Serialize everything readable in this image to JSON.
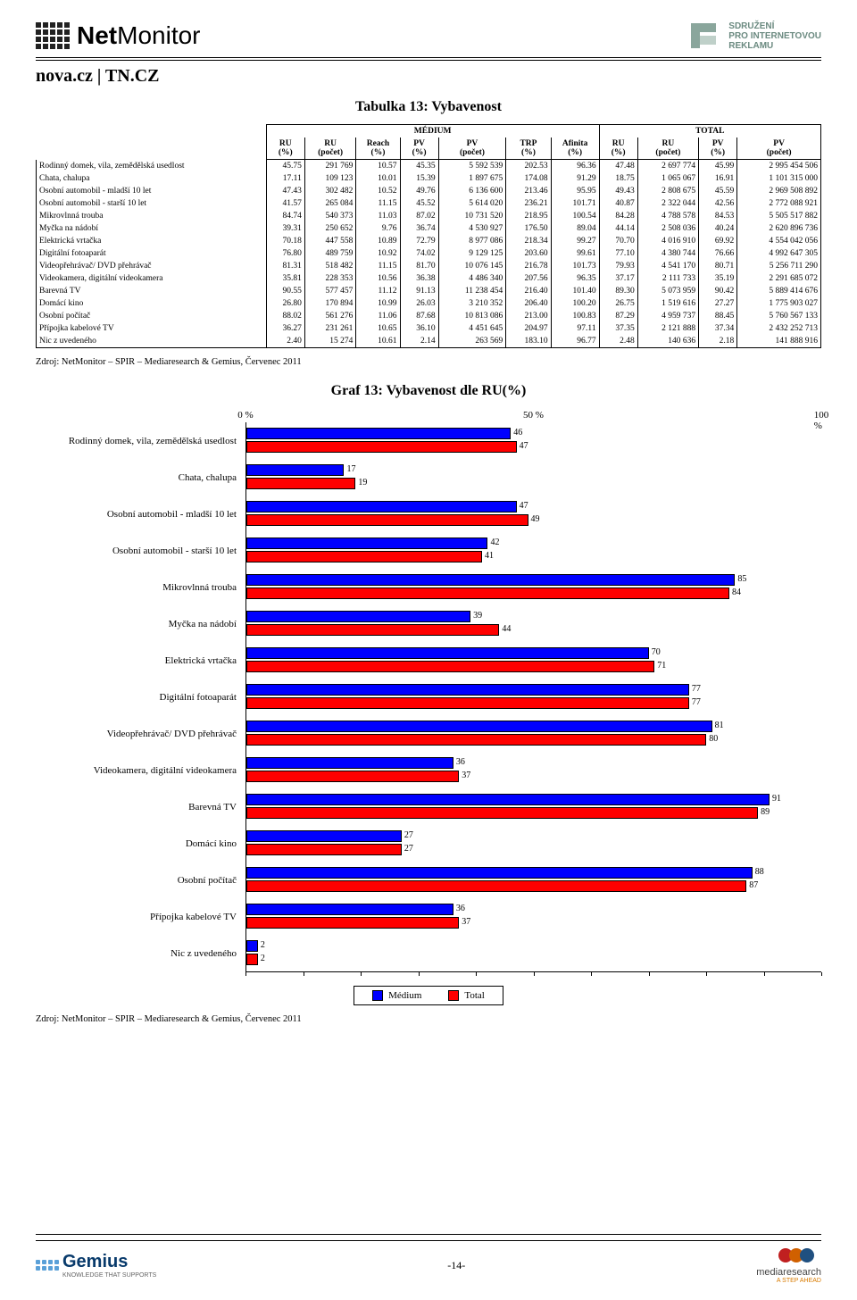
{
  "header": {
    "logo_name": "NetMonitor",
    "spir_line1": "SDRUŽENÍ",
    "spir_line2": "PRO INTERNETOVOU",
    "spir_line3": "REKLAMU"
  },
  "site_title": "nova.cz | TN.CZ",
  "table_title": "Tabulka 13: Vybavenost",
  "group_headers": {
    "medium": "MÉDIUM",
    "total": "TOTAL"
  },
  "columns": [
    "RU (%)",
    "RU (počet)",
    "Reach (%)",
    "PV (%)",
    "PV (počet)",
    "TRP (%)",
    "Afinita (%)",
    "RU (%)",
    "RU (počet)",
    "PV (%)",
    "PV (počet)"
  ],
  "rows": [
    {
      "label": "Rodinný domek, vila, zemědělská usedlost",
      "v": [
        "45.75",
        "291 769",
        "10.57",
        "45.35",
        "5 592 539",
        "202.53",
        "96.36",
        "47.48",
        "2 697 774",
        "45.99",
        "2 995 454 506"
      ]
    },
    {
      "label": "Chata, chalupa",
      "v": [
        "17.11",
        "109 123",
        "10.01",
        "15.39",
        "1 897 675",
        "174.08",
        "91.29",
        "18.75",
        "1 065 067",
        "16.91",
        "1 101 315 000"
      ]
    },
    {
      "label": "Osobní automobil - mladší 10 let",
      "v": [
        "47.43",
        "302 482",
        "10.52",
        "49.76",
        "6 136 600",
        "213.46",
        "95.95",
        "49.43",
        "2 808 675",
        "45.59",
        "2 969 508 892"
      ]
    },
    {
      "label": "Osobní automobil - starší 10 let",
      "v": [
        "41.57",
        "265 084",
        "11.15",
        "45.52",
        "5 614 020",
        "236.21",
        "101.71",
        "40.87",
        "2 322 044",
        "42.56",
        "2 772 088 921"
      ]
    },
    {
      "label": "Mikrovlnná trouba",
      "v": [
        "84.74",
        "540 373",
        "11.03",
        "87.02",
        "10 731 520",
        "218.95",
        "100.54",
        "84.28",
        "4 788 578",
        "84.53",
        "5 505 517 882"
      ]
    },
    {
      "label": "Myčka na nádobí",
      "v": [
        "39.31",
        "250 652",
        "9.76",
        "36.74",
        "4 530 927",
        "176.50",
        "89.04",
        "44.14",
        "2 508 036",
        "40.24",
        "2 620 896 736"
      ]
    },
    {
      "label": "Elektrická vrtačka",
      "v": [
        "70.18",
        "447 558",
        "10.89",
        "72.79",
        "8 977 086",
        "218.34",
        "99.27",
        "70.70",
        "4 016 910",
        "69.92",
        "4 554 042 056"
      ]
    },
    {
      "label": "Digitální fotoaparát",
      "v": [
        "76.80",
        "489 759",
        "10.92",
        "74.02",
        "9 129 125",
        "203.60",
        "99.61",
        "77.10",
        "4 380 744",
        "76.66",
        "4 992 647 305"
      ]
    },
    {
      "label": "Videopřehrávač/ DVD přehrávač",
      "v": [
        "81.31",
        "518 482",
        "11.15",
        "81.70",
        "10 076 145",
        "216.78",
        "101.73",
        "79.93",
        "4 541 170",
        "80.71",
        "5 256 711 290"
      ]
    },
    {
      "label": "Videokamera, digitální videokamera",
      "v": [
        "35.81",
        "228 353",
        "10.56",
        "36.38",
        "4 486 340",
        "207.56",
        "96.35",
        "37.17",
        "2 111 733",
        "35.19",
        "2 291 685 072"
      ]
    },
    {
      "label": "Barevná TV",
      "v": [
        "90.55",
        "577 457",
        "11.12",
        "91.13",
        "11 238 454",
        "216.40",
        "101.40",
        "89.30",
        "5 073 959",
        "90.42",
        "5 889 414 676"
      ]
    },
    {
      "label": "Domácí kino",
      "v": [
        "26.80",
        "170 894",
        "10.99",
        "26.03",
        "3 210 352",
        "206.40",
        "100.20",
        "26.75",
        "1 519 616",
        "27.27",
        "1 775 903 027"
      ]
    },
    {
      "label": "Osobní počítač",
      "v": [
        "88.02",
        "561 276",
        "11.06",
        "87.68",
        "10 813 086",
        "213.00",
        "100.83",
        "87.29",
        "4 959 737",
        "88.45",
        "5 760 567 133"
      ]
    },
    {
      "label": "Přípojka kabelové TV",
      "v": [
        "36.27",
        "231 261",
        "10.65",
        "36.10",
        "4 451 645",
        "204.97",
        "97.11",
        "37.35",
        "2 121 888",
        "37.34",
        "2 432 252 713"
      ]
    },
    {
      "label": "Nic z uvedeného",
      "v": [
        "2.40",
        "15 274",
        "10.61",
        "2.14",
        "263 569",
        "183.10",
        "96.77",
        "2.48",
        "140 636",
        "2.18",
        "141 888 916"
      ]
    }
  ],
  "source_text": "Zdroj: NetMonitor – SPIR – Mediaresearch & Gemius, Červenec 2011",
  "chart_title": "Graf 13: Vybavenost dle RU(%)",
  "axis": {
    "min": 0,
    "max": 100,
    "ticks": [
      0,
      50,
      100
    ],
    "tick_labels": [
      "0 %",
      "50 %",
      "100 %"
    ],
    "minor_step": 10
  },
  "chart": {
    "bar_colors": {
      "medium": "#0000ff",
      "total": "#ff0000"
    },
    "series": [
      {
        "label": "Rodinný domek, vila, zemědělská usedlost",
        "medium": 46,
        "total": 47
      },
      {
        "label": "Chata, chalupa",
        "medium": 17,
        "total": 19
      },
      {
        "label": "Osobní automobil - mladší 10 let",
        "medium": 47,
        "total": 49
      },
      {
        "label": "Osobní automobil - starší 10 let",
        "medium": 42,
        "total": 41
      },
      {
        "label": "Mikrovlnná trouba",
        "medium": 85,
        "total": 84
      },
      {
        "label": "Myčka na nádobí",
        "medium": 39,
        "total": 44
      },
      {
        "label": "Elektrická vrtačka",
        "medium": 70,
        "total": 71
      },
      {
        "label": "Digitální fotoaparát",
        "medium": 77,
        "total": 77
      },
      {
        "label": "Videopřehrávač/ DVD přehrávač",
        "medium": 81,
        "total": 80
      },
      {
        "label": "Videokamera, digitální videokamera",
        "medium": 36,
        "total": 37
      },
      {
        "label": "Barevná TV",
        "medium": 91,
        "total": 89
      },
      {
        "label": "Domácí kino",
        "medium": 27,
        "total": 27
      },
      {
        "label": "Osobní počítač",
        "medium": 88,
        "total": 87
      },
      {
        "label": "Přípojka kabelové TV",
        "medium": 36,
        "total": 37
      },
      {
        "label": "Nic z uvedeného",
        "medium": 2,
        "total": 2
      }
    ],
    "legend": {
      "medium": "Médium",
      "total": "Total"
    }
  },
  "footer": {
    "page_num": "-14-",
    "gemius": "Gemius",
    "gemius_sub": "KNOWLEDGE THAT SUPPORTS",
    "mr_name": "mediaresearch",
    "mr_sub": "A STEP AHEAD"
  }
}
